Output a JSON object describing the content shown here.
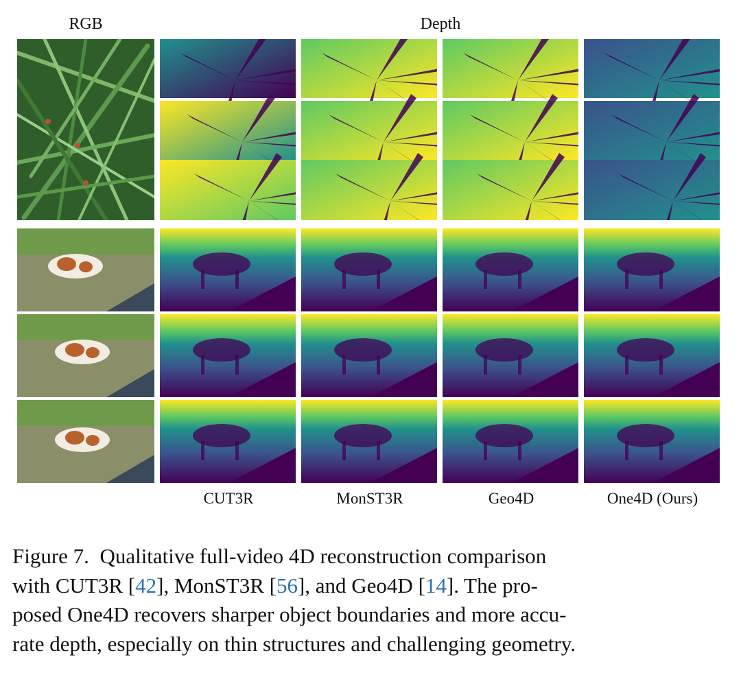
{
  "figure": {
    "header_rgb": "RGB",
    "header_depth": "Depth",
    "methods": [
      "CUT3R",
      "MonST3R",
      "Geo4D",
      "One4D (Ours)"
    ],
    "caption": {
      "label": "Figure 7.",
      "lines": [
        [
          "Qualitative full-video 4D reconstruction comparison"
        ],
        [
          "with CUT3R [",
          "42",
          "], MonST3R [",
          "56",
          "], and Geo4D [",
          "14",
          "].  The pro-"
        ],
        [
          "posed One4D recovers sharper object boundaries and more accu-"
        ],
        [
          "rate depth, especially on thin structures and challenging geometry."
        ]
      ]
    },
    "colors": {
      "viridis_dark": "#440154",
      "viridis_blue": "#3b528b",
      "viridis_teal": "#21918c",
      "viridis_green": "#5ec962",
      "viridis_yellow": "#fde725",
      "reference_link": "#2f6fb3"
    }
  }
}
